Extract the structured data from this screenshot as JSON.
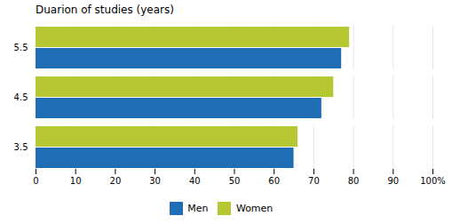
{
  "chart_data": {
    "type": "bar",
    "orientation": "horizontal",
    "title": "Duarion of studies (years)",
    "categories": [
      "3.5",
      "4.5",
      "5.5"
    ],
    "series": [
      {
        "name": "Men",
        "color": "#1f6eb5",
        "values": [
          65,
          72,
          77
        ]
      },
      {
        "name": "Women",
        "color": "#b5c832",
        "values": [
          66,
          75,
          79
        ]
      }
    ],
    "xlim": [
      0,
      100
    ],
    "xticks": [
      0,
      10,
      20,
      30,
      40,
      50,
      60,
      70,
      80,
      90,
      {
        "value": 100,
        "label": "100%"
      }
    ],
    "grid": true,
    "legend": "bottom"
  }
}
